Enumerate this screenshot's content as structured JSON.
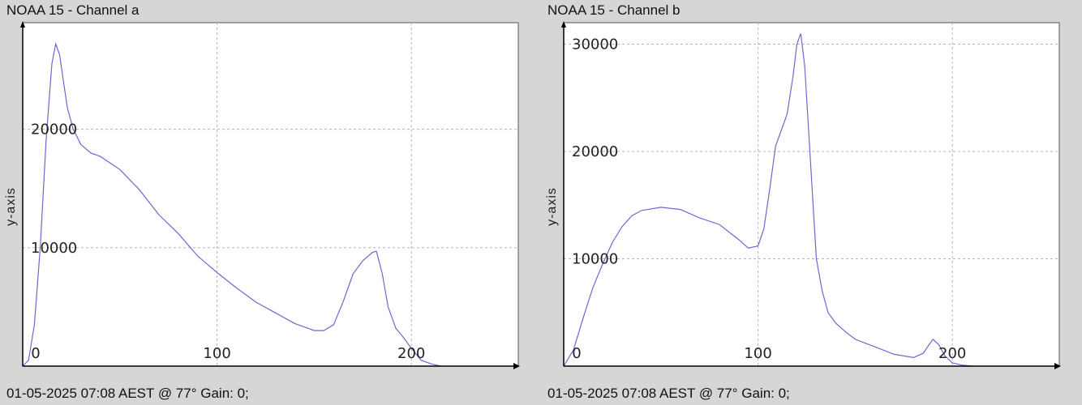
{
  "chart_data": [
    {
      "type": "line",
      "title": "NOAA 15 - Channel a",
      "caption": "01-05-2025 07:08 AEST @ 77° Gain: 0;",
      "xlabel": "",
      "ylabel": "y-axis",
      "xlim": [
        0,
        255
      ],
      "ylim": [
        0,
        29000
      ],
      "x_ticks": [
        0,
        100,
        200
      ],
      "y_ticks": [
        10000,
        20000
      ],
      "grid": true,
      "color": "#6a6acd",
      "x": [
        0,
        3,
        6,
        9,
        12,
        15,
        17,
        19,
        21,
        23,
        26,
        30,
        35,
        40,
        50,
        60,
        70,
        80,
        90,
        100,
        110,
        120,
        130,
        140,
        150,
        155,
        160,
        165,
        170,
        175,
        180,
        182,
        185,
        188,
        192,
        196,
        200,
        205,
        210,
        215
      ],
      "y": [
        0,
        500,
        3500,
        10000,
        19000,
        25500,
        27200,
        26300,
        24000,
        21800,
        20000,
        18700,
        18000,
        17700,
        16600,
        14900,
        12800,
        11200,
        9300,
        7900,
        6600,
        5400,
        4500,
        3600,
        3000,
        3000,
        3500,
        5500,
        7800,
        8900,
        9600,
        9700,
        7800,
        5000,
        3200,
        2400,
        1500,
        500,
        200,
        0
      ]
    },
    {
      "type": "line",
      "title": "NOAA 15 - Channel b",
      "caption": "01-05-2025 07:08 AEST @ 77° Gain: 0;",
      "xlabel": "",
      "ylabel": "y-axis",
      "xlim": [
        0,
        255
      ],
      "ylim": [
        0,
        32000
      ],
      "x_ticks": [
        0,
        100,
        200
      ],
      "y_ticks": [
        10000,
        20000,
        30000
      ],
      "grid": true,
      "color": "#6a6acd",
      "x": [
        0,
        5,
        10,
        15,
        20,
        25,
        30,
        35,
        40,
        50,
        60,
        70,
        80,
        90,
        95,
        100,
        103,
        106,
        109,
        112,
        115,
        118,
        120,
        122,
        124,
        126,
        128,
        130,
        133,
        136,
        140,
        145,
        150,
        160,
        170,
        180,
        185,
        188,
        190,
        193,
        196,
        200,
        205,
        210
      ],
      "y": [
        0,
        1500,
        4500,
        7300,
        9500,
        11500,
        13000,
        14000,
        14500,
        14800,
        14600,
        13800,
        13200,
        11800,
        11000,
        11200,
        12800,
        16500,
        20500,
        22000,
        23500,
        27000,
        30000,
        31000,
        28000,
        22000,
        16000,
        10000,
        7000,
        5000,
        4000,
        3200,
        2500,
        1800,
        1100,
        800,
        1200,
        2000,
        2500,
        2000,
        1000,
        300,
        100,
        0
      ]
    }
  ]
}
